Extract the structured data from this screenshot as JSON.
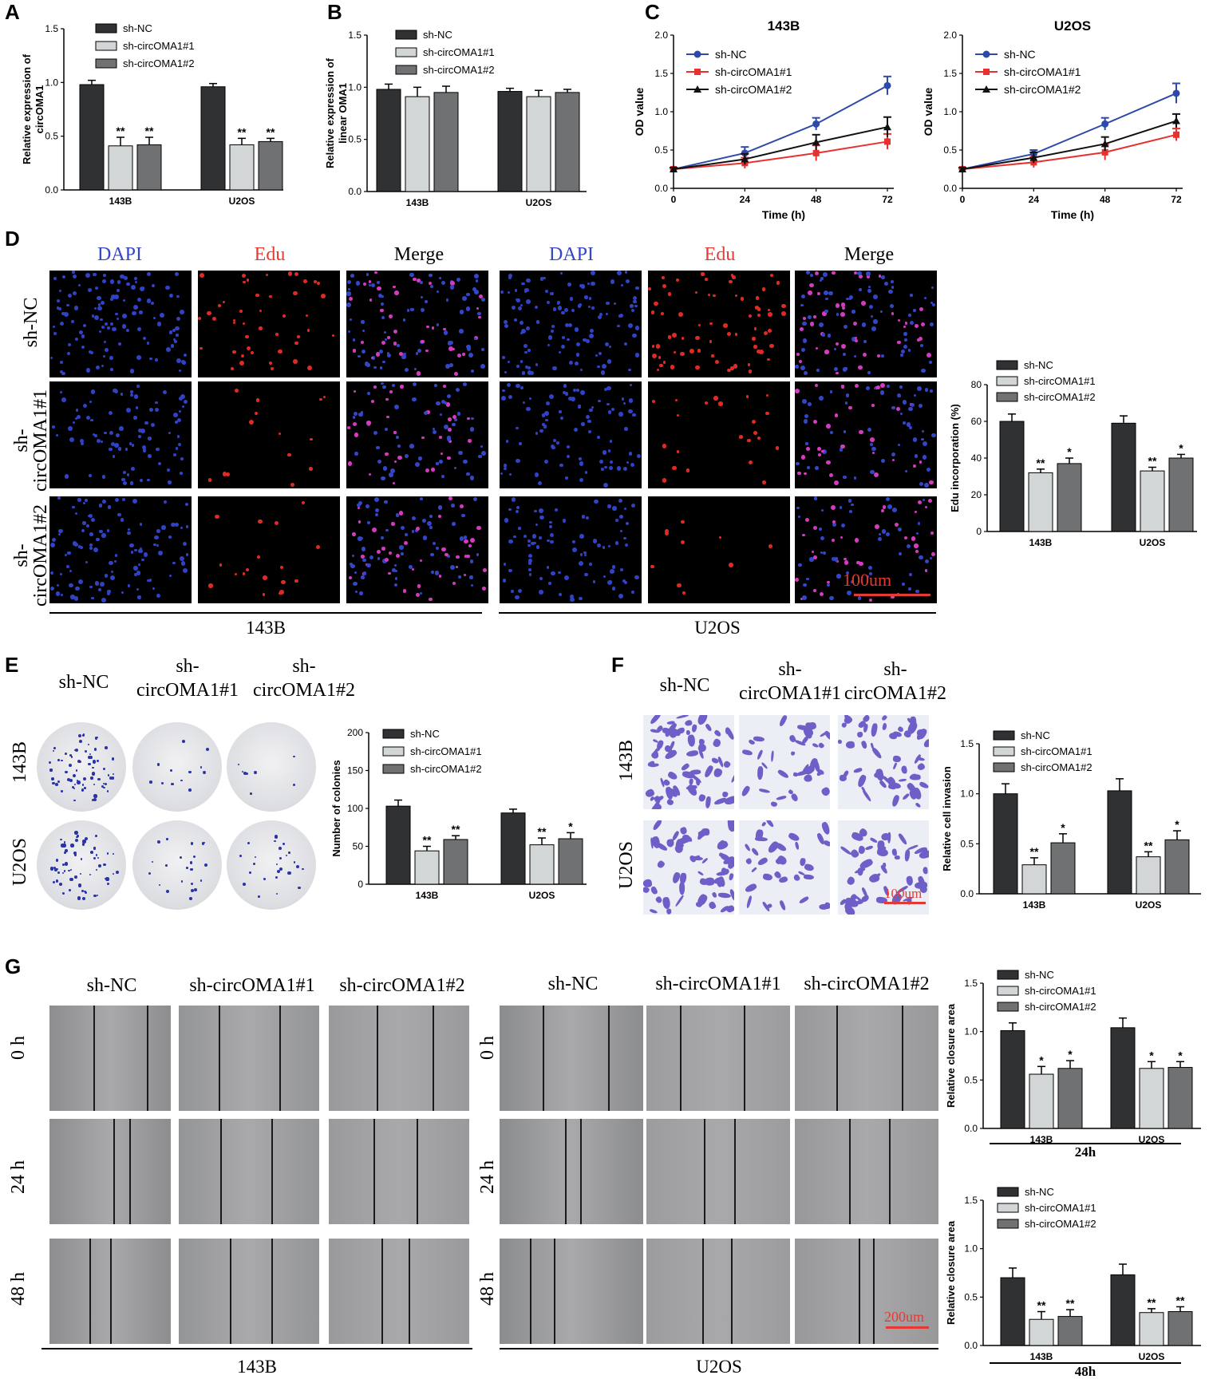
{
  "panels": {
    "A": "A",
    "B": "B",
    "C": "C",
    "D": "D",
    "E": "E",
    "F": "F",
    "G": "G"
  },
  "groups": [
    "sh-NC",
    "sh-circOMA1#1",
    "sh-circOMA1#2"
  ],
  "cell_lines": [
    "143B",
    "U2OS"
  ],
  "colors": {
    "black": "#111111",
    "dark": "#2f3133",
    "light": "#d3d6d7",
    "mid": "#6f7173",
    "blue": "#2d4aa8",
    "red": "#e8312e",
    "linec": "#111111"
  },
  "panel_d": {
    "stains": [
      "DAPI",
      "Edu",
      "Merge",
      "DAPI",
      "Edu",
      "Merge"
    ],
    "rows": [
      "sh-NC",
      "sh-",
      "circOMA1#1",
      "sh-",
      "circOMA1#2"
    ],
    "scale": "100um",
    "bottom": [
      "143B",
      "U2OS"
    ]
  },
  "panel_e": {
    "cols": [
      "sh-NC",
      "sh-",
      "circOMA1#1",
      "sh-",
      "circOMA1#2"
    ],
    "rows": [
      "143B",
      "U2OS"
    ]
  },
  "panel_f": {
    "cols": [
      "sh-NC",
      "sh-",
      "circOMA1#1",
      "sh-",
      "circOMA1#2"
    ],
    "rows": [
      "143B",
      "U2OS"
    ],
    "scale": "100um"
  },
  "panel_g": {
    "cols": [
      "sh-NC",
      "sh-circOMA1#1",
      "sh-circOMA1#2",
      "sh-NC",
      "sh-circOMA1#1",
      "sh-circOMA1#2"
    ],
    "rows": [
      "0 h",
      "24 h",
      "48 h",
      "0 h",
      "24 h",
      "48 h"
    ],
    "scale": "200um",
    "bottom": [
      "143B",
      "U2OS"
    ],
    "chart_labels": [
      "24h",
      "48h"
    ]
  },
  "chart_data": [
    {
      "id": "A",
      "type": "bar",
      "categories": [
        "143B",
        "U2OS"
      ],
      "ylabel": "Relative expression of circOMA1",
      "ylim": [
        0,
        1.5
      ],
      "yticks": [
        "0.0",
        "0.5",
        "1.0",
        "1.5"
      ],
      "legend": [
        "sh-NC",
        "sh-circOMA1#1",
        "sh-circOMA1#2"
      ],
      "series": [
        {
          "name": "sh-NC",
          "values": [
            0.98,
            0.96
          ],
          "err": [
            0.04,
            0.03
          ],
          "sig": [
            "",
            ""
          ]
        },
        {
          "name": "sh-circOMA1#1",
          "values": [
            0.41,
            0.42
          ],
          "err": [
            0.08,
            0.06
          ],
          "sig": [
            "**",
            "**"
          ]
        },
        {
          "name": "sh-circOMA1#2",
          "values": [
            0.42,
            0.45
          ],
          "err": [
            0.07,
            0.03
          ],
          "sig": [
            "**",
            "**"
          ]
        }
      ]
    },
    {
      "id": "B",
      "type": "bar",
      "categories": [
        "143B",
        "U2OS"
      ],
      "ylabel": "Relative expression of linear OMA1",
      "ylim": [
        0,
        1.5
      ],
      "yticks": [
        "0.0",
        "0.5",
        "1.0",
        "1.5"
      ],
      "legend": [
        "sh-NC",
        "sh-circOMA1#1",
        "sh-circOMA1#2"
      ],
      "series": [
        {
          "name": "sh-NC",
          "values": [
            0.98,
            0.96
          ],
          "err": [
            0.05,
            0.03
          ],
          "sig": [
            "",
            ""
          ]
        },
        {
          "name": "sh-circOMA1#1",
          "values": [
            0.91,
            0.91
          ],
          "err": [
            0.09,
            0.06
          ],
          "sig": [
            "",
            ""
          ]
        },
        {
          "name": "sh-circOMA1#2",
          "values": [
            0.95,
            0.95
          ],
          "err": [
            0.06,
            0.03
          ],
          "sig": [
            "",
            ""
          ]
        }
      ]
    },
    {
      "id": "C1",
      "type": "line",
      "title": "143B",
      "x": [
        0,
        24,
        48,
        72
      ],
      "xticks": [
        "0",
        "24",
        "48",
        "72"
      ],
      "xlabel": "Time (h)",
      "ylabel": "OD value",
      "ylim": [
        0,
        2.0
      ],
      "yticks": [
        "0.0",
        "0.5",
        "1.0",
        "1.5",
        "2.0"
      ],
      "legend": [
        "sh-NC",
        "sh-circOMA1#1",
        "sh-circOMA1#2"
      ],
      "series": [
        {
          "name": "sh-NC",
          "values": [
            0.25,
            0.46,
            0.84,
            1.34
          ],
          "err": [
            0.02,
            0.08,
            0.08,
            0.12
          ]
        },
        {
          "name": "sh-circOMA1#1",
          "values": [
            0.25,
            0.33,
            0.46,
            0.61
          ],
          "err": [
            0.02,
            0.07,
            0.1,
            0.1
          ]
        },
        {
          "name": "sh-circOMA1#2",
          "values": [
            0.25,
            0.38,
            0.6,
            0.8
          ],
          "err": [
            0.02,
            0.07,
            0.1,
            0.13
          ]
        }
      ]
    },
    {
      "id": "C2",
      "type": "line",
      "title": "U2OS",
      "x": [
        0,
        24,
        48,
        72
      ],
      "xticks": [
        "0",
        "24",
        "48",
        "72"
      ],
      "xlabel": "Time (h)",
      "ylabel": "OD value",
      "ylim": [
        0,
        2.0
      ],
      "yticks": [
        "0.0",
        "0.5",
        "1.0",
        "1.5",
        "2.0"
      ],
      "legend": [
        "sh-NC",
        "sh-circOMA1#1",
        "sh-circOMA1#2"
      ],
      "series": [
        {
          "name": "sh-NC",
          "values": [
            0.25,
            0.45,
            0.84,
            1.24
          ],
          "err": [
            0.02,
            0.05,
            0.08,
            0.13
          ]
        },
        {
          "name": "sh-circOMA1#1",
          "values": [
            0.25,
            0.34,
            0.47,
            0.7
          ],
          "err": [
            0.02,
            0.07,
            0.1,
            0.08
          ]
        },
        {
          "name": "sh-circOMA1#2",
          "values": [
            0.25,
            0.4,
            0.58,
            0.88
          ],
          "err": [
            0.02,
            0.07,
            0.09,
            0.09
          ]
        }
      ]
    },
    {
      "id": "D",
      "type": "bar",
      "categories": [
        "143B",
        "U2OS"
      ],
      "ylabel": "Edu incorporation (%)",
      "ylim": [
        0,
        80
      ],
      "yticks": [
        "0",
        "20",
        "40",
        "60",
        "80"
      ],
      "legend": [
        "sh-NC",
        "sh-circOMA1#1",
        "sh-circOMA1#2"
      ],
      "series": [
        {
          "name": "sh-NC",
          "values": [
            60,
            59
          ],
          "err": [
            4,
            4
          ],
          "sig": [
            "",
            ""
          ]
        },
        {
          "name": "sh-circOMA1#1",
          "values": [
            32,
            33
          ],
          "err": [
            2,
            2
          ],
          "sig": [
            "**",
            "**"
          ]
        },
        {
          "name": "sh-circOMA1#2",
          "values": [
            37,
            40
          ],
          "err": [
            3,
            2
          ],
          "sig": [
            "*",
            "*"
          ]
        }
      ]
    },
    {
      "id": "E",
      "type": "bar",
      "categories": [
        "143B",
        "U2OS"
      ],
      "ylabel": "Number of colonies",
      "ylim": [
        0,
        200
      ],
      "yticks": [
        "0",
        "50",
        "100",
        "150",
        "200"
      ],
      "legend": [
        "sh-NC",
        "sh-circOMA1#1",
        "sh-circOMA1#2"
      ],
      "series": [
        {
          "name": "sh-NC",
          "values": [
            103,
            94
          ],
          "err": [
            8,
            5
          ],
          "sig": [
            "",
            ""
          ]
        },
        {
          "name": "sh-circOMA1#1",
          "values": [
            44,
            52
          ],
          "err": [
            6,
            9
          ],
          "sig": [
            "**",
            "**"
          ]
        },
        {
          "name": "sh-circOMA1#2",
          "values": [
            59,
            60
          ],
          "err": [
            5,
            8
          ],
          "sig": [
            "**",
            "*"
          ]
        }
      ]
    },
    {
      "id": "F",
      "type": "bar",
      "categories": [
        "143B",
        "U2OS"
      ],
      "ylabel": "Relative cell invasion",
      "ylim": [
        0,
        1.5
      ],
      "yticks": [
        "0.0",
        "0.5",
        "1.0",
        "1.5"
      ],
      "legend": [
        "sh-NC",
        "sh-circOMA1#1",
        "sh-circOMA1#2"
      ],
      "series": [
        {
          "name": "sh-NC",
          "values": [
            1.0,
            1.03
          ],
          "err": [
            0.1,
            0.12
          ],
          "sig": [
            "",
            ""
          ]
        },
        {
          "name": "sh-circOMA1#1",
          "values": [
            0.29,
            0.37
          ],
          "err": [
            0.07,
            0.05
          ],
          "sig": [
            "**",
            "**"
          ]
        },
        {
          "name": "sh-circOMA1#2",
          "values": [
            0.51,
            0.54
          ],
          "err": [
            0.09,
            0.09
          ],
          "sig": [
            "*",
            "*"
          ]
        }
      ]
    },
    {
      "id": "G1",
      "type": "bar",
      "categories": [
        "143B",
        "U2OS"
      ],
      "ylabel": "Relative closure area",
      "ylim": [
        0,
        1.5
      ],
      "yticks": [
        "0.0",
        "0.5",
        "1.0",
        "1.5"
      ],
      "legend": [
        "sh-NC",
        "sh-circOMA1#1",
        "sh-circOMA1#2"
      ],
      "series": [
        {
          "name": "sh-NC",
          "values": [
            1.01,
            1.04
          ],
          "err": [
            0.08,
            0.1
          ],
          "sig": [
            "",
            ""
          ]
        },
        {
          "name": "sh-circOMA1#1",
          "values": [
            0.56,
            0.62
          ],
          "err": [
            0.08,
            0.07
          ],
          "sig": [
            "*",
            "*"
          ]
        },
        {
          "name": "sh-circOMA1#2",
          "values": [
            0.62,
            0.63
          ],
          "err": [
            0.08,
            0.06
          ],
          "sig": [
            "*",
            "*"
          ]
        }
      ]
    },
    {
      "id": "G2",
      "type": "bar",
      "categories": [
        "143B",
        "U2OS"
      ],
      "ylabel": "Relative closure area",
      "ylim": [
        0,
        1.5
      ],
      "yticks": [
        "0.0",
        "0.5",
        "1.0",
        "1.5"
      ],
      "legend": [
        "sh-NC",
        "sh-circOMA1#1",
        "sh-circOMA1#2"
      ],
      "series": [
        {
          "name": "sh-NC",
          "values": [
            0.7,
            0.73
          ],
          "err": [
            0.1,
            0.11
          ],
          "sig": [
            "",
            ""
          ]
        },
        {
          "name": "sh-circOMA1#1",
          "values": [
            0.27,
            0.34
          ],
          "err": [
            0.08,
            0.04
          ],
          "sig": [
            "**",
            "**"
          ]
        },
        {
          "name": "sh-circOMA1#2",
          "values": [
            0.3,
            0.35
          ],
          "err": [
            0.07,
            0.05
          ],
          "sig": [
            "**",
            "**"
          ]
        }
      ]
    }
  ]
}
